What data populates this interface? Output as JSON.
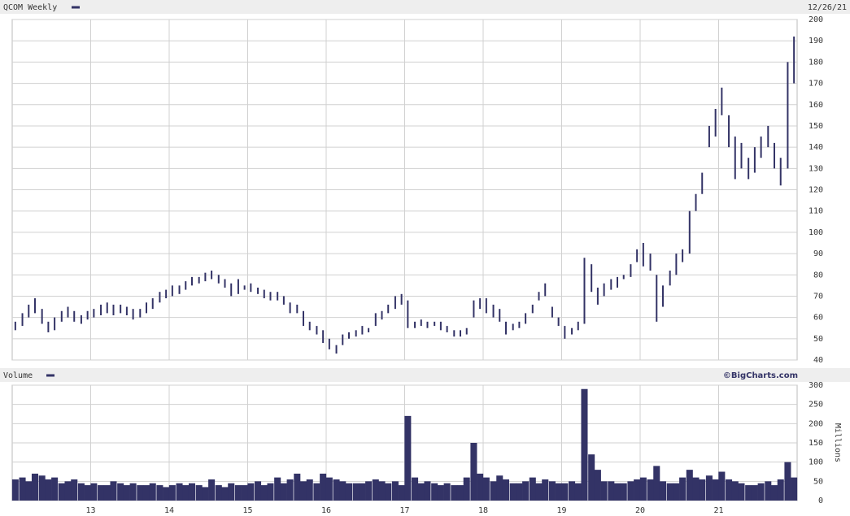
{
  "chart_data": [
    {
      "type": "range-bar",
      "date": "12/26/21",
      "xlim": [
        2012,
        2022
      ],
      "ylim": [
        40,
        200
      ],
      "yticks": [
        40,
        50,
        60,
        70,
        80,
        90,
        100,
        110,
        120,
        130,
        140,
        150,
        160,
        170,
        180,
        190,
        200
      ],
      "grid": true,
      "x": [
        2012.04,
        2012.13,
        2012.21,
        2012.29,
        2012.38,
        2012.46,
        2012.54,
        2012.63,
        2012.71,
        2012.79,
        2012.88,
        2012.96,
        2013.04,
        2013.13,
        2013.21,
        2013.29,
        2013.38,
        2013.46,
        2013.54,
        2013.63,
        2013.71,
        2013.79,
        2013.88,
        2013.96,
        2014.04,
        2014.13,
        2014.21,
        2014.29,
        2014.38,
        2014.46,
        2014.54,
        2014.63,
        2014.71,
        2014.79,
        2014.88,
        2014.96,
        2015.04,
        2015.13,
        2015.21,
        2015.29,
        2015.38,
        2015.46,
        2015.54,
        2015.63,
        2015.71,
        2015.79,
        2015.88,
        2015.96,
        2016.04,
        2016.13,
        2016.21,
        2016.29,
        2016.38,
        2016.46,
        2016.54,
        2016.63,
        2016.71,
        2016.79,
        2016.88,
        2016.96,
        2017.04,
        2017.13,
        2017.21,
        2017.29,
        2017.38,
        2017.46,
        2017.54,
        2017.63,
        2017.71,
        2017.79,
        2017.88,
        2017.96,
        2018.04,
        2018.13,
        2018.21,
        2018.29,
        2018.38,
        2018.46,
        2018.54,
        2018.63,
        2018.71,
        2018.79,
        2018.88,
        2018.96,
        2019.04,
        2019.13,
        2019.21,
        2019.29,
        2019.38,
        2019.46,
        2019.54,
        2019.63,
        2019.71,
        2019.79,
        2019.88,
        2019.96,
        2020.04,
        2020.13,
        2020.21,
        2020.29,
        2020.38,
        2020.46,
        2020.54,
        2020.63,
        2020.71,
        2020.79,
        2020.88,
        2020.96,
        2021.04,
        2021.13,
        2021.21,
        2021.29,
        2021.38,
        2021.46,
        2021.54,
        2021.63,
        2021.71,
        2021.79,
        2021.88,
        2021.96
      ],
      "series": [
        {
          "name": "QCOM Weekly",
          "color": "#333366",
          "high": [
            58,
            62,
            66,
            69,
            64,
            58,
            60,
            63,
            65,
            63,
            61,
            63,
            64,
            66,
            67,
            66,
            66,
            65,
            64,
            64,
            67,
            69,
            72,
            73,
            75,
            75,
            77,
            79,
            79,
            81,
            82,
            80,
            78,
            76,
            78,
            75,
            76,
            74,
            73,
            72,
            72,
            70,
            67,
            66,
            63,
            58,
            56,
            54,
            50,
            47,
            52,
            53,
            54,
            56,
            55,
            62,
            63,
            66,
            70,
            71,
            68,
            58,
            59,
            58,
            58,
            58,
            56,
            54,
            54,
            55,
            68,
            69,
            69,
            66,
            64,
            58,
            57,
            58,
            62,
            66,
            72,
            76,
            65,
            60,
            56,
            55,
            58,
            88,
            85,
            74,
            76,
            78,
            79,
            80,
            85,
            92,
            95,
            90,
            80,
            75,
            82,
            90,
            92,
            110,
            118,
            128,
            150,
            158,
            168,
            155,
            145,
            142,
            135,
            140,
            145,
            150,
            142,
            135,
            180,
            192
          ],
          "low": [
            54,
            56,
            60,
            62,
            57,
            53,
            54,
            58,
            60,
            58,
            57,
            59,
            60,
            61,
            62,
            61,
            62,
            61,
            59,
            60,
            62,
            64,
            67,
            69,
            70,
            71,
            73,
            75,
            76,
            77,
            78,
            76,
            74,
            70,
            71,
            73,
            72,
            71,
            69,
            68,
            68,
            66,
            62,
            62,
            56,
            54,
            52,
            48,
            45,
            43,
            47,
            50,
            51,
            52,
            53,
            56,
            59,
            62,
            64,
            66,
            55,
            55,
            56,
            55,
            56,
            54,
            53,
            51,
            51,
            52,
            60,
            64,
            62,
            60,
            58,
            52,
            54,
            55,
            57,
            62,
            68,
            70,
            60,
            56,
            50,
            52,
            54,
            57,
            72,
            66,
            70,
            73,
            74,
            78,
            79,
            86,
            84,
            82,
            58,
            65,
            75,
            80,
            86,
            90,
            110,
            118,
            140,
            145,
            155,
            140,
            125,
            130,
            125,
            128,
            135,
            140,
            130,
            122,
            130,
            170
          ]
        }
      ]
    },
    {
      "type": "bar",
      "title": "Volume",
      "credit": "©BigCharts.com",
      "y_label": "Millions",
      "color": "#333366",
      "xlim": [
        2012,
        2022
      ],
      "ylim": [
        0,
        300
      ],
      "yticks": [
        0,
        50,
        100,
        150,
        200,
        250,
        300
      ],
      "grid": true,
      "xticks": [
        {
          "value": 2013,
          "label": "13"
        },
        {
          "value": 2014,
          "label": "14"
        },
        {
          "value": 2015,
          "label": "15"
        },
        {
          "value": 2016,
          "label": "16"
        },
        {
          "value": 2017,
          "label": "17"
        },
        {
          "value": 2018,
          "label": "18"
        },
        {
          "value": 2019,
          "label": "19"
        },
        {
          "value": 2020,
          "label": "20"
        },
        {
          "value": 2021,
          "label": "21"
        }
      ],
      "values": [
        55,
        60,
        50,
        70,
        65,
        55,
        60,
        45,
        50,
        55,
        45,
        40,
        45,
        40,
        40,
        50,
        45,
        40,
        45,
        40,
        40,
        45,
        40,
        35,
        40,
        45,
        40,
        45,
        40,
        35,
        55,
        40,
        35,
        45,
        40,
        40,
        45,
        50,
        40,
        45,
        60,
        45,
        55,
        70,
        50,
        55,
        45,
        70,
        60,
        55,
        50,
        45,
        45,
        45,
        50,
        55,
        50,
        45,
        50,
        40,
        220,
        60,
        45,
        50,
        45,
        40,
        45,
        40,
        40,
        60,
        150,
        70,
        60,
        50,
        65,
        55,
        45,
        45,
        50,
        60,
        45,
        55,
        50,
        45,
        45,
        50,
        45,
        290,
        120,
        80,
        50,
        50,
        45,
        45,
        50,
        55,
        60,
        55,
        90,
        50,
        45,
        45,
        60,
        80,
        60,
        55,
        65,
        55,
        75,
        55,
        50,
        45,
        40,
        40,
        45,
        50,
        40,
        55,
        100,
        60
      ]
    }
  ]
}
